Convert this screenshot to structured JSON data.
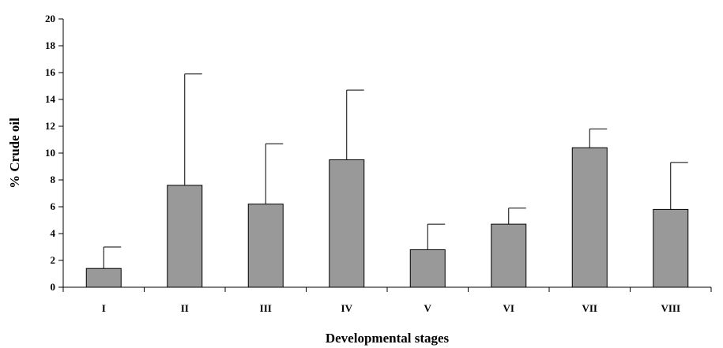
{
  "chart_data": {
    "type": "bar",
    "xlabel": "Developmental stages",
    "ylabel": "% Crude oil",
    "ylim": [
      0,
      20
    ],
    "yticks": [
      "0",
      "2",
      "4",
      "6",
      "8",
      "10",
      "12",
      "14",
      "16",
      "18",
      "20"
    ],
    "categories": [
      "I",
      "II",
      "III",
      "IV",
      "V",
      "VI",
      "VII",
      "VIII"
    ],
    "values": [
      1.4,
      7.6,
      6.2,
      9.5,
      2.8,
      4.7,
      10.4,
      5.8
    ],
    "error_upper": [
      1.6,
      8.3,
      4.5,
      5.2,
      1.9,
      1.2,
      1.4,
      3.5
    ],
    "bar_color": "#999999",
    "grid": false,
    "legend": "none"
  }
}
